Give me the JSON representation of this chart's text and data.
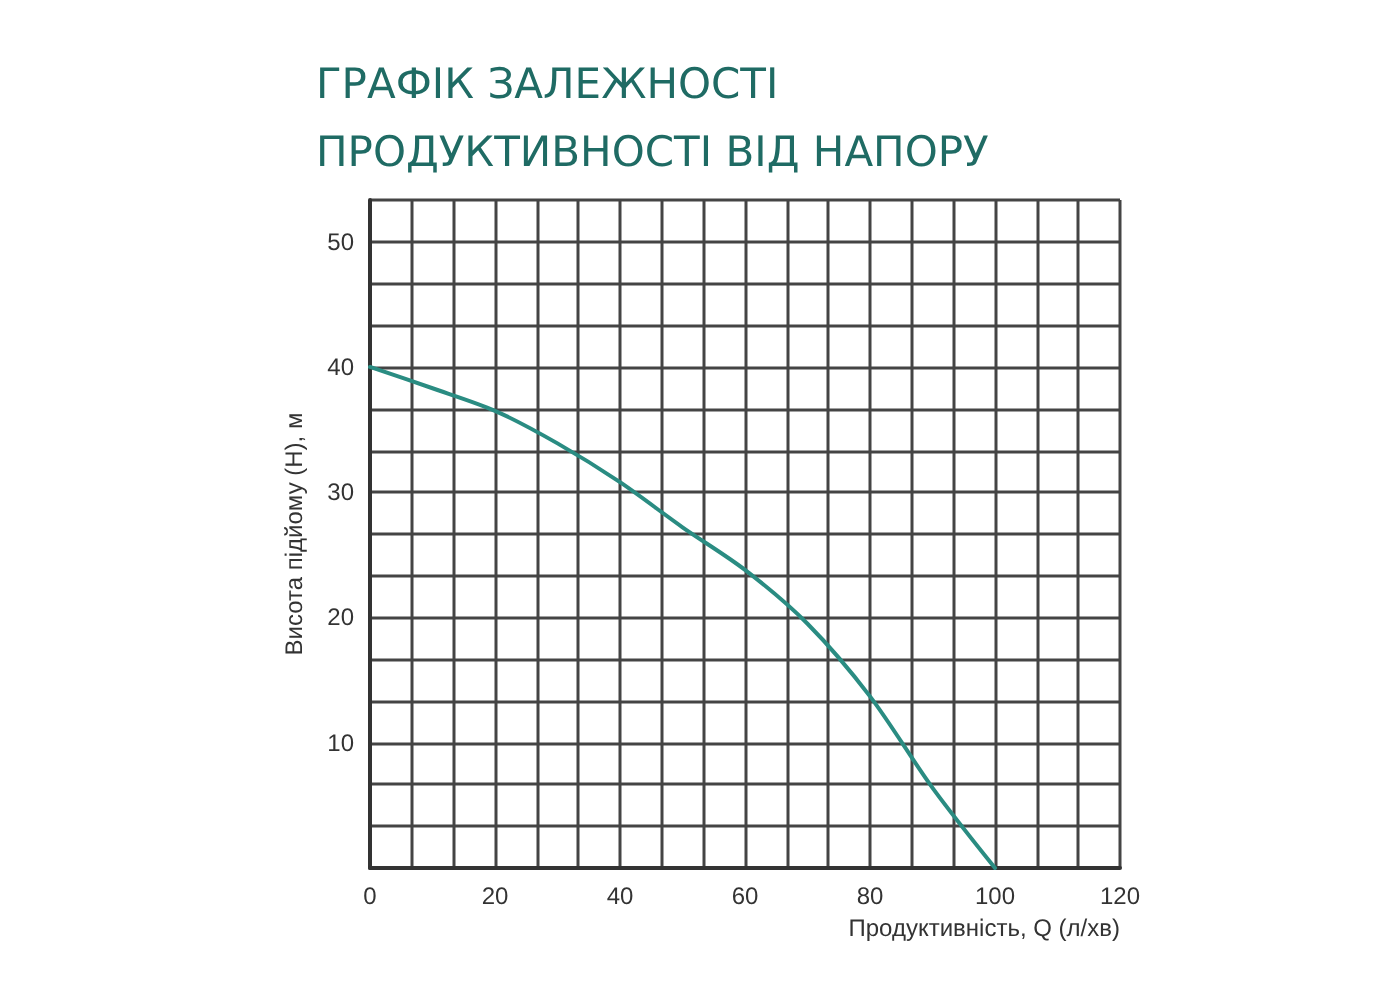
{
  "chart_data": {
    "type": "line",
    "title": "ГРАФІК ЗАЛЕЖНОСТІ\nПРОДУКТИВНОСТІ ВІД НАПОРУ",
    "xlabel": "Продуктивність, Q (л/хв)",
    "ylabel": "Висота підйому (H), м",
    "x": [
      0,
      10,
      20,
      30,
      40,
      50,
      60,
      70,
      80,
      90,
      100
    ],
    "series": [
      {
        "color": "#2a8c82",
        "values": [
          40,
          38.3,
          36.5,
          33.9,
          30.8,
          27.2,
          23.8,
          19.5,
          13.7,
          6.4,
          0
        ]
      }
    ],
    "xlim": [
      0,
      120
    ],
    "ylim": [
      0,
      53.33
    ],
    "xticks": [
      0,
      {
        "value": 6.67,
        "label": null
      },
      {
        "value": 13.33,
        "label": null
      },
      20,
      {
        "value": 26.67,
        "label": null
      },
      {
        "value": 33.33,
        "label": null
      },
      40,
      {
        "value": 46.67,
        "label": null
      },
      {
        "value": 53.33,
        "label": null
      },
      60,
      {
        "value": 66.67,
        "label": null
      },
      {
        "value": 73.33,
        "label": null
      },
      80,
      {
        "value": 86.67,
        "label": null
      },
      {
        "value": 93.33,
        "label": null
      },
      100,
      {
        "value": 106.67,
        "label": null
      },
      {
        "value": 113.33,
        "label": null
      },
      120
    ],
    "yticks": [
      {
        "value": 0,
        "label": null
      },
      {
        "value": 3.33,
        "label": null
      },
      {
        "value": 6.67,
        "label": null
      },
      10,
      {
        "value": 13.33,
        "label": null
      },
      {
        "value": 16.67,
        "label": null
      },
      20,
      {
        "value": 23.33,
        "label": null
      },
      {
        "value": 26.67,
        "label": null
      },
      30,
      {
        "value": 33.33,
        "label": null
      },
      {
        "value": 36.67,
        "label": null
      },
      40,
      {
        "value": 43.33,
        "label": null
      },
      {
        "value": 46.67,
        "label": null
      },
      50,
      {
        "value": 53.33,
        "label": null
      }
    ],
    "grid": true,
    "marker": "none",
    "line_style": "solid"
  }
}
